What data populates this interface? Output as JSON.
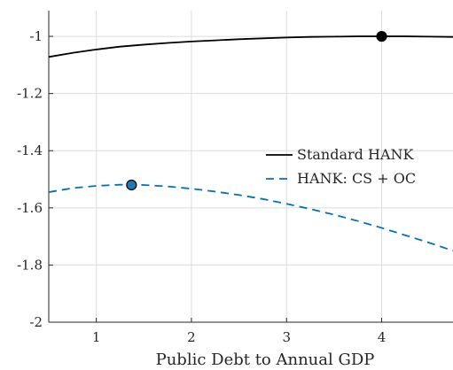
{
  "chart_data": {
    "type": "line",
    "title": "",
    "xlabel": "Public Debt to Annual GDP",
    "ylabel": "",
    "xlim": [
      0.5,
      4.75
    ],
    "ylim": [
      -2,
      -0.91
    ],
    "xticks": [
      1,
      2,
      3,
      4
    ],
    "yticks": [
      -1,
      -1.2,
      -1.4,
      -1.6,
      -1.8,
      -2
    ],
    "xtick_labels": [
      "1",
      "2",
      "3",
      "4"
    ],
    "ytick_labels": [
      "-1",
      "-1.2",
      "-1.4",
      "-1.6",
      "-1.8",
      "-2"
    ],
    "grid": true,
    "legend_position": "center-right",
    "series": [
      {
        "name": "Standard HANK",
        "color": "#000000",
        "line_style": "solid",
        "x": [
          0.5,
          0.75,
          1.0,
          1.25,
          1.5,
          1.75,
          2.0,
          2.25,
          2.5,
          2.75,
          3.0,
          3.25,
          3.5,
          3.75,
          4.0,
          4.25,
          4.5,
          4.75
        ],
        "y": [
          -1.072,
          -1.058,
          -1.046,
          -1.036,
          -1.029,
          -1.023,
          -1.018,
          -1.014,
          -1.01,
          -1.007,
          -1.004,
          -1.002,
          -1.001,
          -1.0,
          -1.0,
          -1.0,
          -1.001,
          -1.002
        ],
        "marker": {
          "x": 4.0,
          "y": -1.0,
          "fill": "#000000"
        }
      },
      {
        "name": "HANK: CS + OC",
        "color": "#0072bd",
        "line_style": "dashed",
        "x": [
          0.5,
          0.75,
          1.0,
          1.25,
          1.5,
          1.75,
          2.0,
          2.25,
          2.5,
          2.75,
          3.0,
          3.25,
          3.5,
          3.75,
          4.0,
          4.25,
          4.5,
          4.75
        ],
        "y": [
          -1.545,
          -1.531,
          -1.523,
          -1.519,
          -1.52,
          -1.525,
          -1.533,
          -1.543,
          -1.555,
          -1.569,
          -1.586,
          -1.604,
          -1.624,
          -1.646,
          -1.67,
          -1.696,
          -1.722,
          -1.75
        ],
        "marker": {
          "x": 1.37,
          "y": -1.52,
          "fill": "#1f77b4"
        }
      }
    ]
  }
}
